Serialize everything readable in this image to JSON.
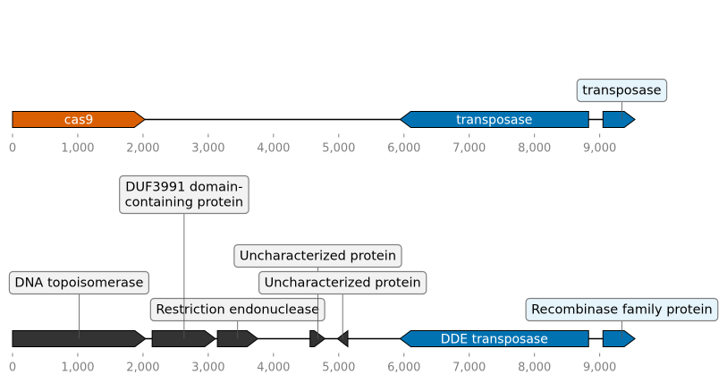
{
  "axis": {
    "min": 0,
    "max": 9560,
    "ticks": [
      0,
      1000,
      2000,
      3000,
      4000,
      5000,
      6000,
      7000,
      8000,
      9000
    ],
    "tick_labels": [
      "0",
      "1,000",
      "2,000",
      "3,000",
      "4,000",
      "5,000",
      "6,000",
      "7,000",
      "8,000",
      "9,000"
    ]
  },
  "colors": {
    "cas9": "#d95f02",
    "transposase": "#0072b2",
    "dark_gene": "#333333",
    "backbone": "#000000",
    "tick": "#808080",
    "callout_fill_blue": "#e6f4fb",
    "callout_fill_gray": "#f2f2f2",
    "callout_border": "#808080"
  },
  "tracks": [
    {
      "name": "top-locus",
      "genes": [
        {
          "id": "cas9",
          "start": 0,
          "end": 2030,
          "strand": 1,
          "color": "cas9",
          "label": "cas9"
        },
        {
          "id": "transposase-1",
          "start": 5940,
          "end": 8830,
          "strand": -1,
          "color": "transposase",
          "label": "transposase"
        },
        {
          "id": "transposase-2",
          "start": 9050,
          "end": 9540,
          "strand": 1,
          "color": "transposase",
          "label": ""
        }
      ],
      "callouts": [
        {
          "text": "transposase",
          "pos": 9340,
          "fill": "callout_fill_blue",
          "level": 1
        }
      ]
    },
    {
      "name": "bottom-locus",
      "genes": [
        {
          "id": "dna-topoisomerase",
          "start": 0,
          "end": 2040,
          "strand": 1,
          "color": "dark_gene",
          "label": ""
        },
        {
          "id": "duf3991-protein",
          "start": 2140,
          "end": 3110,
          "strand": 1,
          "color": "dark_gene",
          "label": ""
        },
        {
          "id": "restriction-endonuclease",
          "start": 3140,
          "end": 3760,
          "strand": 1,
          "color": "dark_gene",
          "label": ""
        },
        {
          "id": "uncharacterized-1",
          "start": 4560,
          "end": 4790,
          "strand": 1,
          "color": "dark_gene",
          "label": ""
        },
        {
          "id": "uncharacterized-2",
          "start": 4980,
          "end": 5140,
          "strand": -1,
          "color": "dark_gene",
          "label": ""
        },
        {
          "id": "dde-transposase",
          "start": 5940,
          "end": 8830,
          "strand": -1,
          "color": "transposase",
          "label": "DDE transposase"
        },
        {
          "id": "recombinase",
          "start": 9050,
          "end": 9540,
          "strand": 1,
          "color": "transposase",
          "label": ""
        }
      ],
      "callouts": [
        {
          "text": "DNA topoisomerase",
          "pos": 1020,
          "fill": "callout_fill_gray",
          "level": 2
        },
        {
          "text": "Restriction endonuclease",
          "pos": 3450,
          "fill": "callout_fill_gray",
          "level": 1
        },
        {
          "text": "DUF3991 domain-\ncontaining protein",
          "pos": 2630,
          "fill": "callout_fill_gray",
          "level": 5
        },
        {
          "text": "Uncharacterized protein",
          "pos": 4680,
          "fill": "callout_fill_gray",
          "level": 3
        },
        {
          "text": "Uncharacterized protein",
          "pos": 5060,
          "fill": "callout_fill_gray",
          "level": 2
        },
        {
          "text": "Recombinase family protein",
          "pos": 9340,
          "fill": "callout_fill_blue",
          "level": 1
        }
      ]
    }
  ]
}
